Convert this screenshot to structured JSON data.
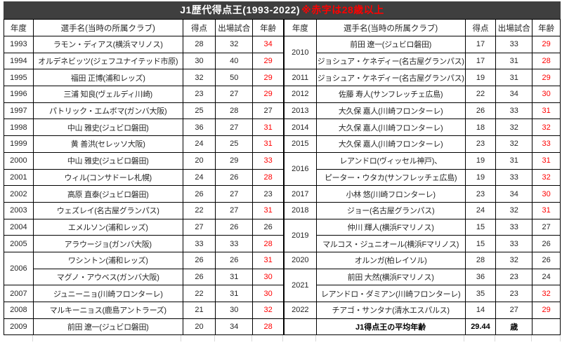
{
  "title": {
    "main": "J1歴代得点王(1993-2022)",
    "note": "※赤字は28歳以上"
  },
  "header_columns": [
    "年度",
    "選手名(当時の所属クラブ)",
    "得点",
    "出場試合",
    "年齢"
  ],
  "colors": {
    "age_highlight_red": "#ff0000",
    "title_bar_bg": "#3f3f3f",
    "title_bar_text": "#ffffff"
  },
  "left_table": {
    "rows": [
      {
        "year": "1993",
        "rowspan": 1,
        "player": "ラモン・ディアス(横浜マリノス)",
        "goals": "28",
        "matches": "32",
        "age": "34",
        "age_red": true
      },
      {
        "year": "1994",
        "rowspan": 1,
        "player": "オルデネビッツ(ジェフユナイテッド市原)",
        "goals": "30",
        "matches": "40",
        "age": "29",
        "age_red": true
      },
      {
        "year": "1995",
        "rowspan": 1,
        "player": "福田 正博(浦和レッズ)",
        "goals": "32",
        "matches": "50",
        "age": "29",
        "age_red": true
      },
      {
        "year": "1996",
        "rowspan": 1,
        "player": "三浦 知良(ヴェルディ川崎)",
        "goals": "23",
        "matches": "27",
        "age": "29",
        "age_red": true
      },
      {
        "year": "1997",
        "rowspan": 1,
        "player": "パトリック・エムボマ(ガンバ大阪)",
        "goals": "25",
        "matches": "28",
        "age": "27",
        "age_red": false
      },
      {
        "year": "1998",
        "rowspan": 1,
        "player": "中山 雅史(ジュビロ磐田)",
        "goals": "36",
        "matches": "27",
        "age": "31",
        "age_red": true
      },
      {
        "year": "1999",
        "rowspan": 1,
        "player": "黄 善洪(セレッソ大阪)",
        "goals": "24",
        "matches": "25",
        "age": "31",
        "age_red": true
      },
      {
        "year": "2000",
        "rowspan": 1,
        "player": "中山 雅史(ジュビロ磐田)",
        "goals": "20",
        "matches": "29",
        "age": "33",
        "age_red": true
      },
      {
        "year": "2001",
        "rowspan": 1,
        "player": "ウィル(コンサドーレ札幌)",
        "goals": "24",
        "matches": "26",
        "age": "28",
        "age_red": true
      },
      {
        "year": "2002",
        "rowspan": 1,
        "player": "高原 直泰(ジュビロ磐田)",
        "goals": "26",
        "matches": "27",
        "age": "23",
        "age_red": false
      },
      {
        "year": "2003",
        "rowspan": 1,
        "player": "ウェズレイ(名古屋グランパス)",
        "goals": "22",
        "matches": "27",
        "age": "31",
        "age_red": true
      },
      {
        "year": "2004",
        "rowspan": 1,
        "player": "エメルソン(浦和レッズ)",
        "goals": "27",
        "matches": "26",
        "age": "26",
        "age_red": false
      },
      {
        "year": "2005",
        "rowspan": 1,
        "player": "アラウージョ(ガンバ大阪)",
        "goals": "33",
        "matches": "33",
        "age": "28",
        "age_red": true
      },
      {
        "year": "2006",
        "rowspan": 2,
        "player": "ワシントン(浦和レッズ)",
        "goals": "26",
        "matches": "26",
        "age": "31",
        "age_red": true
      },
      {
        "year": null,
        "player": "マグノ・アウベス(ガンバ大阪)",
        "goals": "26",
        "matches": "31",
        "age": "30",
        "age_red": true
      },
      {
        "year": "2007",
        "rowspan": 1,
        "player": "ジュニーニョ(川崎フロンターレ)",
        "goals": "22",
        "matches": "31",
        "age": "30",
        "age_red": true
      },
      {
        "year": "2008",
        "rowspan": 1,
        "player": "マルキーニョス(鹿島アントラーズ)",
        "goals": "21",
        "matches": "30",
        "age": "32",
        "age_red": true
      },
      {
        "year": "2009",
        "rowspan": 1,
        "player": "前田 遼一(ジュビロ磐田)",
        "goals": "20",
        "matches": "34",
        "age": "28",
        "age_red": true
      }
    ]
  },
  "right_table": {
    "rows": [
      {
        "year": "2010",
        "rowspan": 2,
        "player": "前田 遼一(ジュビロ磐田)",
        "goals": "17",
        "matches": "33",
        "age": "29",
        "age_red": true
      },
      {
        "year": null,
        "player": "ジョシュア・ケネディー(名古屋グランパス)",
        "goals": "17",
        "matches": "31",
        "age": "28",
        "age_red": true
      },
      {
        "year": "2011",
        "rowspan": 1,
        "player": "ジョシュア・ケネディー(名古屋グランパス)",
        "goals": "19",
        "matches": "31",
        "age": "29",
        "age_red": true
      },
      {
        "year": "2012",
        "rowspan": 1,
        "player": "佐藤 寿人(サンフレッチェ広島)",
        "goals": "22",
        "matches": "34",
        "age": "30",
        "age_red": true
      },
      {
        "year": "2013",
        "rowspan": 1,
        "player": "大久保 嘉人(川崎フロンターレ)",
        "goals": "26",
        "matches": "33",
        "age": "31",
        "age_red": true
      },
      {
        "year": "2014",
        "rowspan": 1,
        "player": "大久保 嘉人(川崎フロンターレ)",
        "goals": "18",
        "matches": "32",
        "age": "32",
        "age_red": true
      },
      {
        "year": "2015",
        "rowspan": 1,
        "player": "大久保 嘉人(川崎フロンターレ)",
        "goals": "23",
        "matches": "32",
        "age": "33",
        "age_red": true
      },
      {
        "year": "2016",
        "rowspan": 2,
        "player": "レアンドロ(ヴィッセル神戸)、",
        "goals": "19",
        "matches": "31",
        "age": "31",
        "age_red": true
      },
      {
        "year": null,
        "player": "ピーター・ウタカ(サンフレッチェ広島)",
        "goals": "19",
        "matches": "33",
        "age": "32",
        "age_red": true
      },
      {
        "year": "2017",
        "rowspan": 1,
        "player": "小林 悠(川崎フロンターレ)",
        "goals": "23",
        "matches": "34",
        "age": "30",
        "age_red": true
      },
      {
        "year": "2018",
        "rowspan": 1,
        "player": "ジョー(名古屋グランパス)",
        "goals": "24",
        "matches": "32",
        "age": "31",
        "age_red": true
      },
      {
        "year": "2019",
        "rowspan": 2,
        "player": "仲川 輝人(横浜Fマリノス)",
        "goals": "15",
        "matches": "33",
        "age": "27",
        "age_red": false
      },
      {
        "year": null,
        "player": "マルコス・ジュニオール(横浜Fマリノス)",
        "goals": "15",
        "matches": "33",
        "age": "26",
        "age_red": false
      },
      {
        "year": "2020",
        "rowspan": 1,
        "player": "オルンガ(柏レイソル)",
        "goals": "28",
        "matches": "32",
        "age": "26",
        "age_red": false
      },
      {
        "year": "2021",
        "rowspan": 2,
        "player": "前田 大然(横浜Fマリノス)",
        "goals": "36",
        "matches": "23",
        "age": "24",
        "age_red": false
      },
      {
        "year": null,
        "player": "レアンドロ・ダミアン(川崎フロンターレ)",
        "goals": "35",
        "matches": "23",
        "age": "32",
        "age_red": true
      },
      {
        "year": "2022",
        "rowspan": 1,
        "player": "チアゴ・サンタナ(清水エスパルス)",
        "goals": "14",
        "matches": "27",
        "age": "29",
        "age_red": true
      }
    ],
    "footer": {
      "label": "J1得点王の平均年齢",
      "value": "29.44",
      "unit": "歳"
    }
  }
}
